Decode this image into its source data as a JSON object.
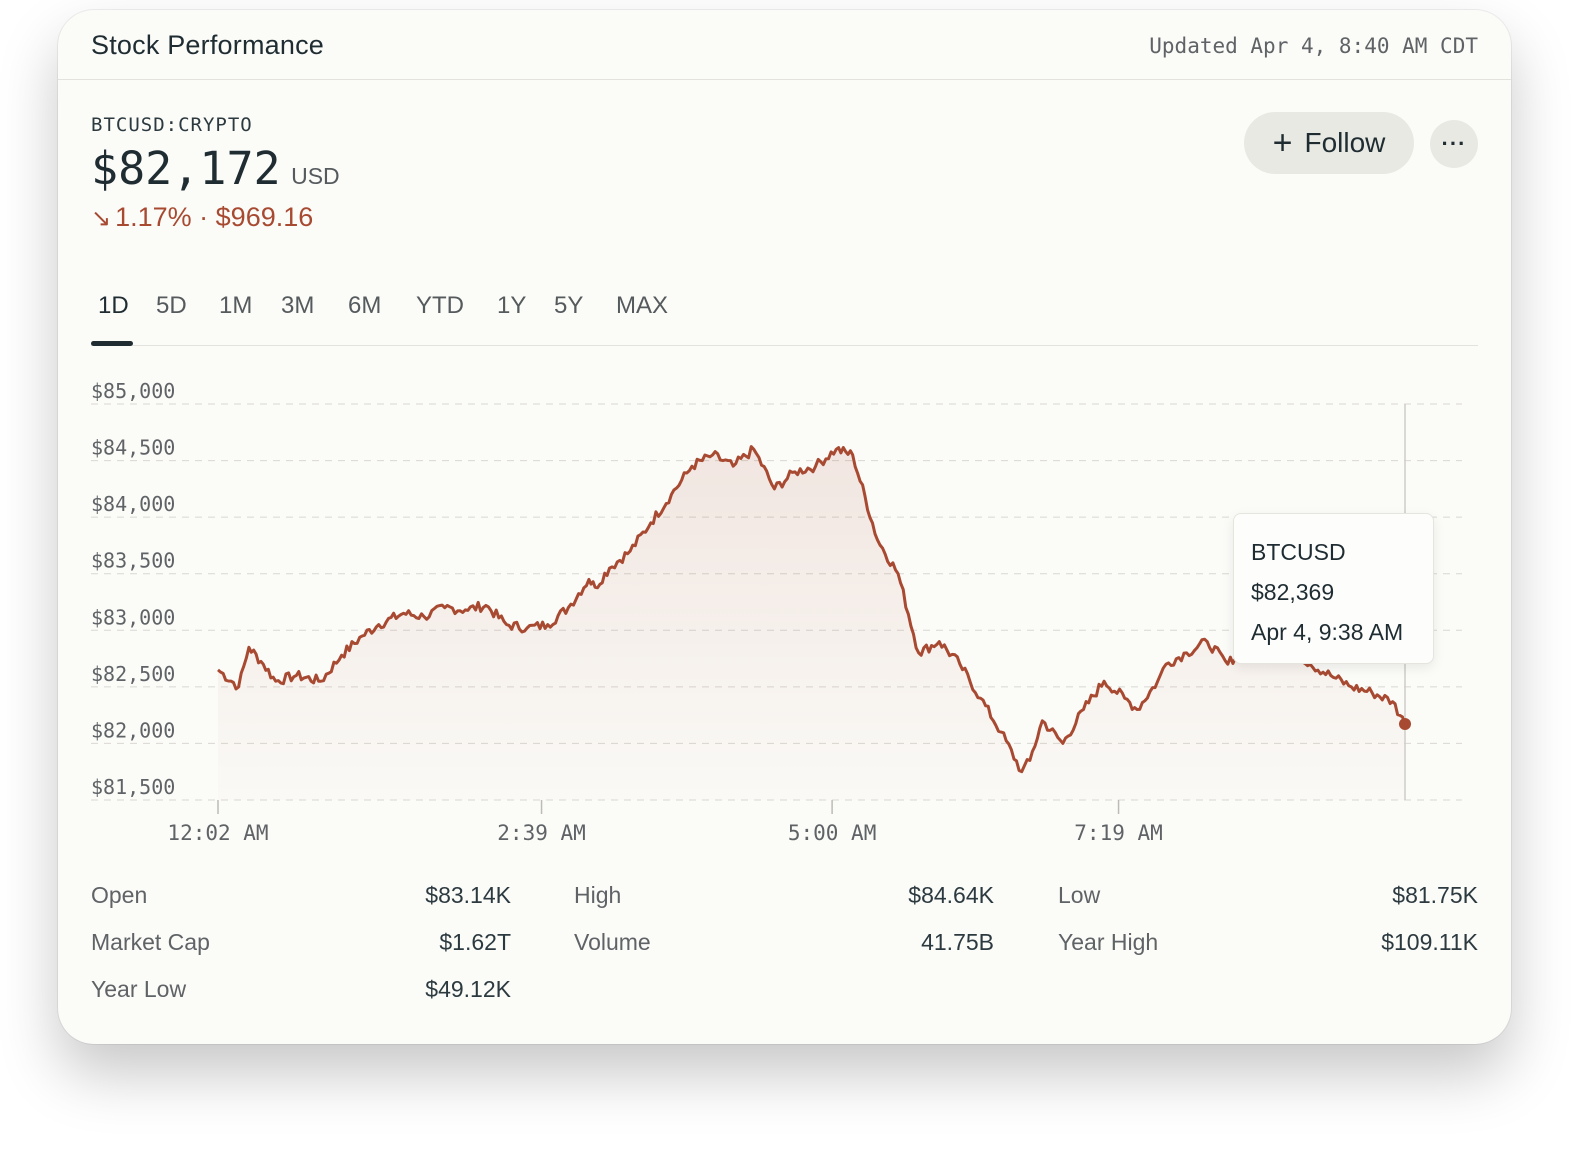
{
  "header": {
    "title": "Stock Performance",
    "updated": "Updated Apr 4, 8:40 AM CDT"
  },
  "quote": {
    "symbol": "BTCUSD:CRYPTO",
    "price": "$82,172",
    "currency": "USD",
    "change_arrow": "↘",
    "change": "1.17% · $969.16",
    "change_color": "#a84a32"
  },
  "actions": {
    "follow_label": "Follow",
    "follow_icon": "plus-icon",
    "more_label": "···",
    "more_icon": "more-icon"
  },
  "range_tabs": {
    "active": "1D",
    "items": [
      "1D",
      "5D",
      "1M",
      "3M",
      "6M",
      "YTD",
      "1Y",
      "5Y",
      "MAX"
    ]
  },
  "tooltip": {
    "symbol": "BTCUSD",
    "price": "$82,369",
    "time": "Apr 4, 9:38 AM"
  },
  "chart_data": {
    "type": "area",
    "line_color": "#a84a32",
    "grid": true,
    "ylim": [
      81500,
      85000
    ],
    "y_tick_labels": [
      "$85,000",
      "$84,500",
      "$84,000",
      "$83,500",
      "$83,000",
      "$82,500",
      "$82,000",
      "$81,500"
    ],
    "y_ticks": [
      85000,
      84500,
      84000,
      83500,
      83000,
      82500,
      82000,
      81500
    ],
    "x_tick_labels": [
      "12:02 AM",
      "2:39 AM",
      "5:00 AM",
      "7:19 AM"
    ],
    "x_ticks_minutes": [
      2,
      159,
      300,
      439
    ],
    "xlim_minutes": [
      2,
      578
    ],
    "series": [
      {
        "x_minutes": [
          2,
          12,
          17,
          24,
          30,
          40,
          52,
          62,
          72,
          80,
          92,
          102,
          112,
          122,
          132,
          142,
          152,
          162,
          172,
          182,
          185,
          192,
          202,
          212,
          222,
          232,
          242,
          252,
          262,
          272,
          282,
          292,
          302,
          310,
          322,
          332,
          342,
          352,
          362,
          372,
          382,
          392,
          396,
          402,
          412,
          422,
          432,
          442,
          448,
          458,
          462,
          472,
          482,
          492,
          502,
          512,
          522,
          532,
          542,
          552,
          562,
          572,
          578
        ],
        "values": [
          82650,
          82500,
          82850,
          82700,
          82550,
          82600,
          82550,
          82780,
          82950,
          83050,
          83150,
          83120,
          83200,
          83180,
          83220,
          83050,
          83020,
          83050,
          83200,
          83450,
          83380,
          83550,
          83700,
          83950,
          84200,
          84450,
          84550,
          84450,
          84600,
          84250,
          84400,
          84450,
          84600,
          84550,
          83800,
          83500,
          82800,
          82900,
          82700,
          82400,
          82100,
          81750,
          81850,
          82200,
          82000,
          82300,
          82550,
          82400,
          82300,
          82550,
          82700,
          82800,
          82900,
          82700,
          82900,
          83000,
          82850,
          82700,
          82600,
          82500,
          82450,
          82369,
          82172
        ]
      }
    ],
    "end_marker_value": 82172
  },
  "stats": [
    {
      "label": "Open",
      "value": "$83.14K"
    },
    {
      "label": "High",
      "value": "$84.64K"
    },
    {
      "label": "Low",
      "value": "$81.75K"
    },
    {
      "label": "Market Cap",
      "value": "$1.62T"
    },
    {
      "label": "Volume",
      "value": "41.75B"
    },
    {
      "label": "Year High",
      "value": "$109.11K"
    },
    {
      "label": "Year Low",
      "value": "$49.12K"
    }
  ]
}
